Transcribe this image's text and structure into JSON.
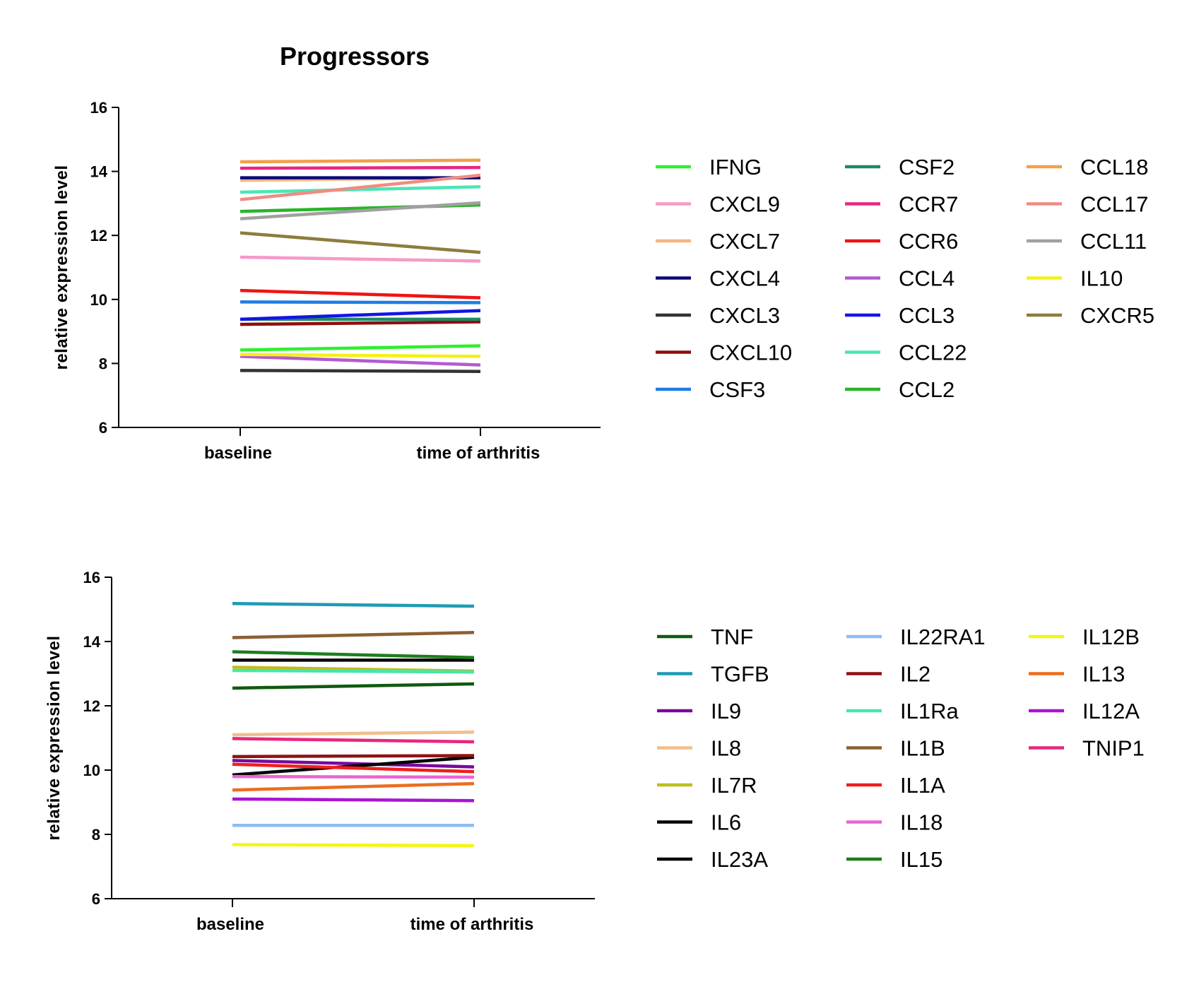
{
  "chart_data": [
    {
      "type": "line",
      "title": "Progressors",
      "ylabel": "relative expression level",
      "xlabel": "",
      "categories": [
        "baseline",
        "time of arthritis"
      ],
      "ylim": [
        6,
        16
      ],
      "yticks": [
        "6",
        "8",
        "10",
        "12",
        "14",
        "16"
      ],
      "legend_position": "right",
      "series": [
        {
          "name": "IFNG",
          "color": "#2ef02e",
          "values": [
            8.42,
            8.55
          ]
        },
        {
          "name": "CXCL9",
          "color": "#f59ac8",
          "values": [
            11.32,
            11.2
          ]
        },
        {
          "name": "CXCL7",
          "color": "#f5b682",
          "values": [
            13.72,
            13.8
          ]
        },
        {
          "name": "CXCL4",
          "color": "#0a0a78",
          "values": [
            13.8,
            13.8
          ]
        },
        {
          "name": "CXCL3",
          "color": "#333333",
          "values": [
            7.78,
            7.75
          ]
        },
        {
          "name": "CXCL10",
          "color": "#8f0e0e",
          "values": [
            9.22,
            9.3
          ]
        },
        {
          "name": "CSF3",
          "color": "#1f7de6",
          "values": [
            9.92,
            9.9
          ]
        },
        {
          "name": "CSF2",
          "color": "#1e8a64",
          "values": [
            9.38,
            9.38
          ]
        },
        {
          "name": "CCR7",
          "color": "#e62882",
          "values": [
            14.1,
            14.12
          ]
        },
        {
          "name": "CCR6",
          "color": "#f01414",
          "values": [
            10.28,
            10.05
          ]
        },
        {
          "name": "CCL4",
          "color": "#b45ad2",
          "values": [
            8.22,
            7.95
          ]
        },
        {
          "name": "CCL3",
          "color": "#1414e6",
          "values": [
            9.38,
            9.65
          ]
        },
        {
          "name": "CCL22",
          "color": "#4be6b4",
          "values": [
            13.35,
            13.52
          ]
        },
        {
          "name": "CCL2",
          "color": "#28b428",
          "values": [
            12.75,
            12.95
          ]
        },
        {
          "name": "CCL18",
          "color": "#f0a04b",
          "values": [
            14.3,
            14.35
          ]
        },
        {
          "name": "CCL17",
          "color": "#f08c82",
          "values": [
            13.12,
            13.88
          ]
        },
        {
          "name": "CCL11",
          "color": "#a0a0a0",
          "values": [
            12.52,
            13.02
          ]
        },
        {
          "name": "IL10",
          "color": "#f5f014",
          "values": [
            8.28,
            8.22
          ]
        },
        {
          "name": "CXCR5",
          "color": "#8c7d3c",
          "values": [
            12.08,
            11.47
          ]
        }
      ]
    },
    {
      "type": "line",
      "title": "",
      "ylabel": "relative expression level",
      "xlabel": "",
      "categories": [
        "baseline",
        "time of arthritis"
      ],
      "ylim": [
        6,
        16
      ],
      "yticks": [
        "6",
        "8",
        "10",
        "12",
        "14",
        "16"
      ],
      "legend_position": "right",
      "series": [
        {
          "name": "TNF",
          "color": "#0f5a0f",
          "values": [
            12.55,
            12.68
          ]
        },
        {
          "name": "TGFB",
          "color": "#1e9bb4",
          "values": [
            15.18,
            15.1
          ]
        },
        {
          "name": "IL9",
          "color": "#780a9b",
          "values": [
            10.3,
            10.1
          ]
        },
        {
          "name": "IL8",
          "color": "#f0be8c",
          "values": [
            11.1,
            11.18
          ]
        },
        {
          "name": "IL7R",
          "color": "#bebe1e",
          "values": [
            13.2,
            13.08
          ]
        },
        {
          "name": "IL6",
          "color": "#000000",
          "values": [
            9.85,
            10.4
          ]
        },
        {
          "name": "IL23A",
          "color": "#000000",
          "values": [
            13.42,
            13.42
          ]
        },
        {
          "name": "IL22RA1",
          "color": "#8cbef0",
          "values": [
            8.28,
            8.28
          ]
        },
        {
          "name": "IL2",
          "color": "#8c1414",
          "values": [
            10.42,
            10.45
          ]
        },
        {
          "name": "IL1Ra",
          "color": "#46e6aa",
          "values": [
            13.1,
            13.05
          ]
        },
        {
          "name": "IL1B",
          "color": "#8c5f32",
          "values": [
            14.12,
            14.28
          ]
        },
        {
          "name": "IL1A",
          "color": "#f01e1e",
          "values": [
            10.18,
            9.95
          ]
        },
        {
          "name": "IL18",
          "color": "#eb64d2",
          "values": [
            9.8,
            9.78
          ]
        },
        {
          "name": "IL15",
          "color": "#1e7d1e",
          "values": [
            13.68,
            13.5
          ]
        },
        {
          "name": "IL12B",
          "color": "#f5f514",
          "values": [
            7.68,
            7.65
          ]
        },
        {
          "name": "IL13",
          "color": "#eb6e1e",
          "values": [
            9.38,
            9.58
          ]
        },
        {
          "name": "IL12A",
          "color": "#aa14d2",
          "values": [
            9.1,
            9.05
          ]
        },
        {
          "name": "TNIP1",
          "color": "#e6287d",
          "values": [
            10.98,
            10.88
          ]
        }
      ]
    }
  ]
}
